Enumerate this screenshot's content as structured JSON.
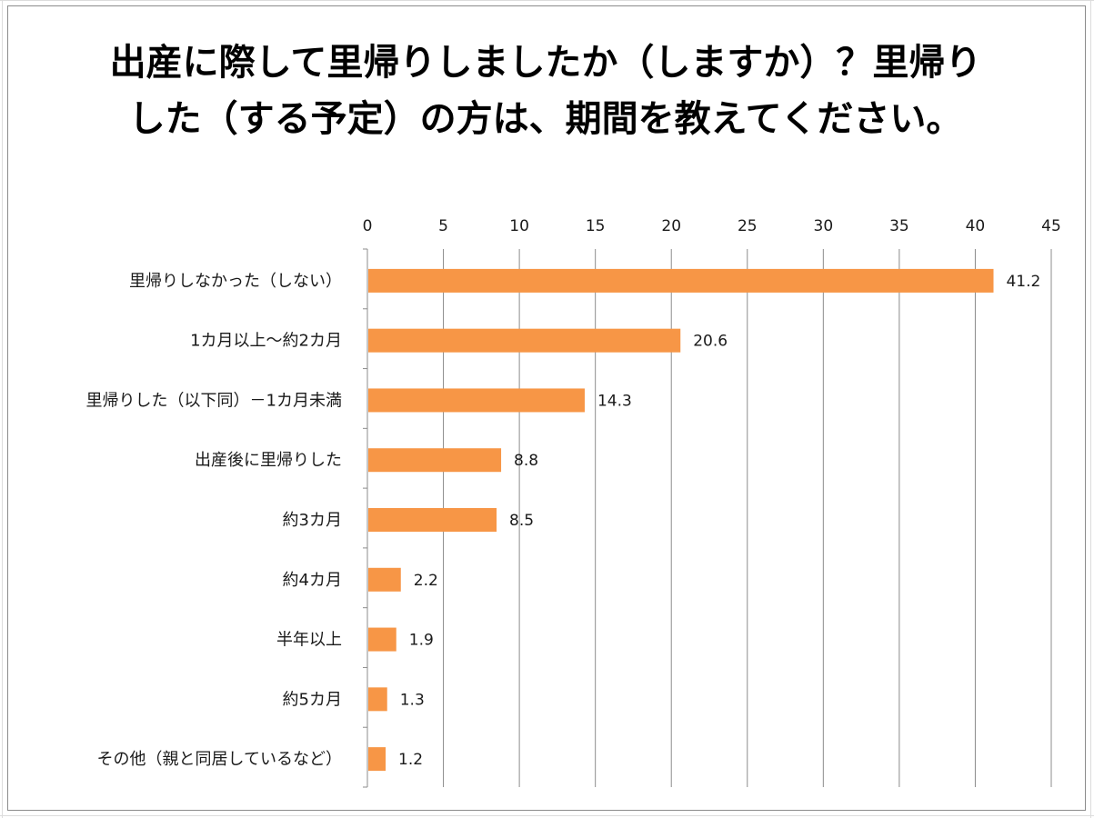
{
  "chart_data": {
    "type": "bar",
    "orientation": "horizontal",
    "title": "出産に際して里帰りしましたか（しますか）？里帰りした（する予定）の方は、期間を教えてください。",
    "categories": [
      "里帰りしなかった（しない）",
      "1カ月以上～約2カ月",
      "里帰りした（以下同）－1カ月未満",
      "出産後に里帰りした",
      "約3カ月",
      "約4カ月",
      "半年以上",
      "約5カ月",
      "その他（親と同居しているなど）"
    ],
    "values": [
      41.2,
      20.6,
      14.3,
      8.8,
      8.5,
      2.2,
      1.9,
      1.3,
      1.2
    ],
    "value_labels": [
      "41.2",
      "20.6",
      "14.3",
      "8.8",
      "8.5",
      "2.2",
      "1.9",
      "1.3",
      "1.2"
    ],
    "xlim": [
      0,
      45
    ],
    "x_ticks": [
      0,
      5,
      10,
      15,
      20,
      25,
      30,
      35,
      40,
      45
    ],
    "x_axis_position": "top",
    "grid": true,
    "legend": "none",
    "bar_color": "#f79646",
    "grid_color": "#8c8c8c"
  }
}
